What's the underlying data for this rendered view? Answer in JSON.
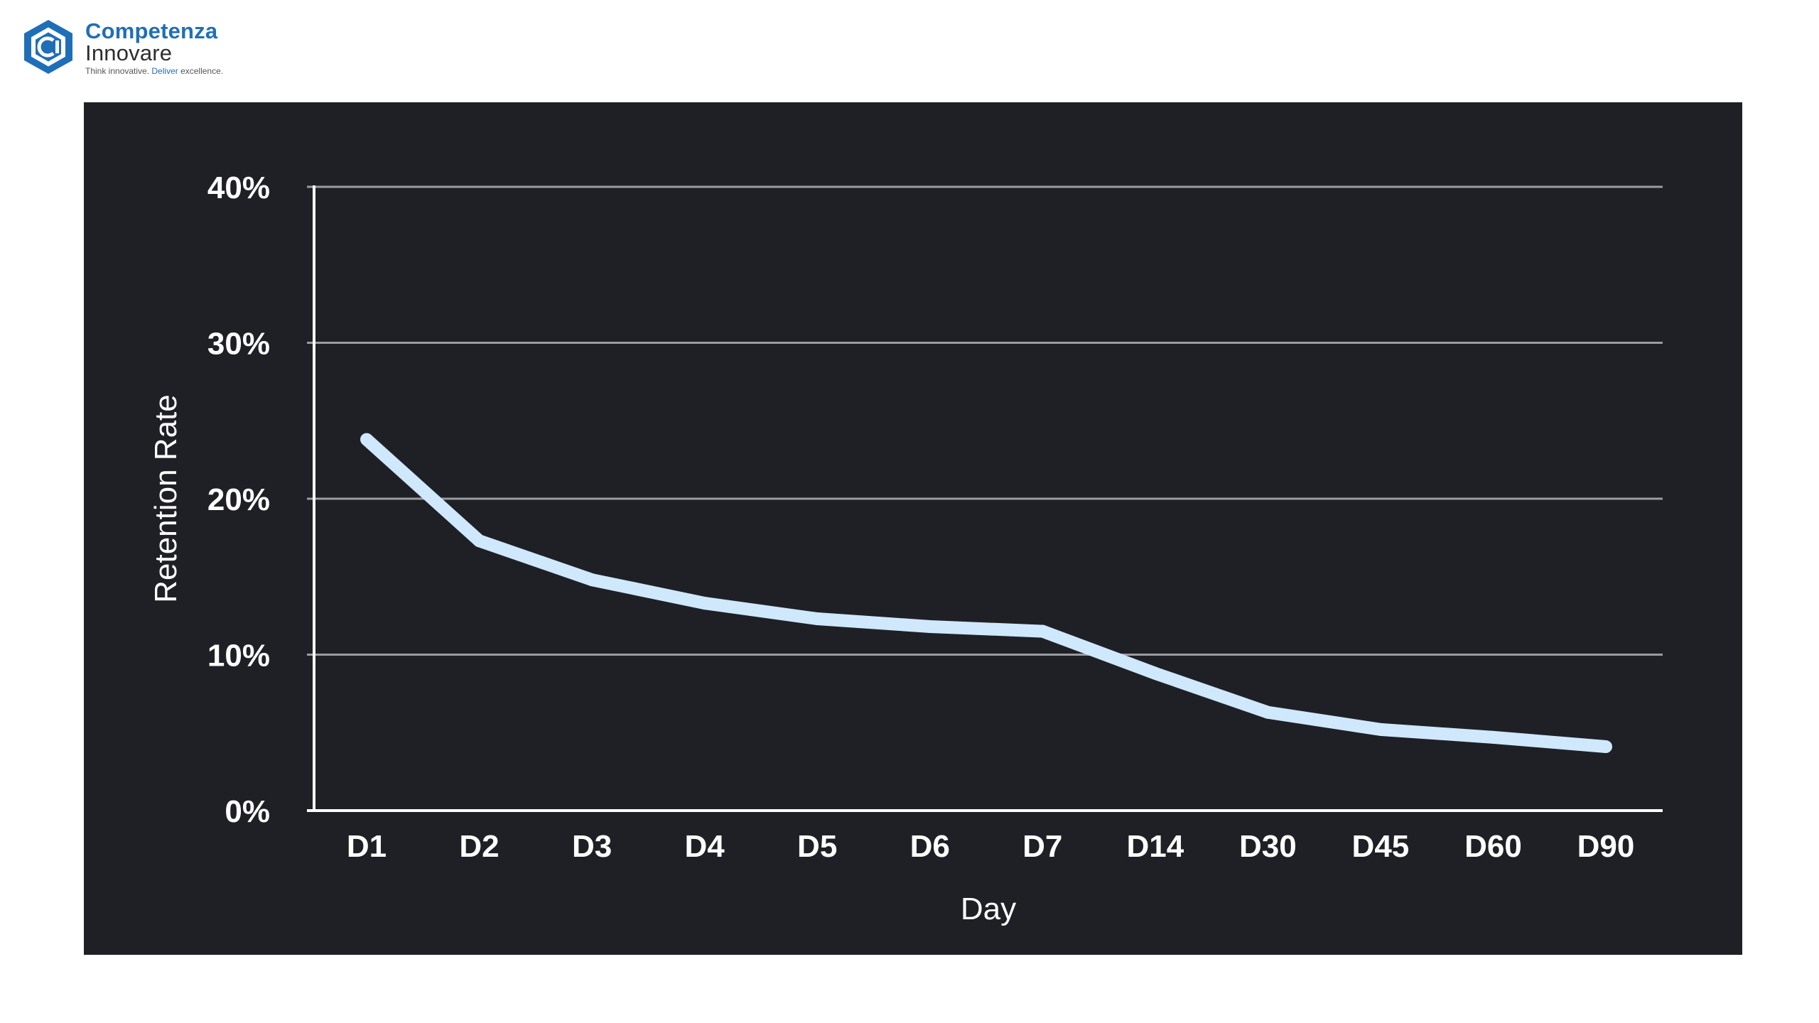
{
  "logo": {
    "line1": "Competenza",
    "line2": "Innovare",
    "tagline_part1": "Think innovative.",
    "tagline_part2": "Deliver",
    "tagline_part3": "excellence.",
    "brand_color": "#1f6fb8"
  },
  "chart_data": {
    "type": "line",
    "title": "",
    "xlabel": "Day",
    "ylabel": "Retention Rate",
    "categories": [
      "D1",
      "D2",
      "D3",
      "D4",
      "D5",
      "D6",
      "D7",
      "D14",
      "D30",
      "D45",
      "D60",
      "D90"
    ],
    "series": [
      {
        "values": [
          23.8,
          17.3,
          14.8,
          13.3,
          12.3,
          11.8,
          11.5,
          8.8,
          6.3,
          5.2,
          4.7,
          4.1
        ],
        "color": "#cfe8fc"
      }
    ],
    "ylim": [
      0,
      40
    ],
    "yticks": [
      0,
      10,
      20,
      30,
      40
    ],
    "ytick_labels": [
      "0%",
      "10%",
      "20%",
      "30%",
      "40%"
    ],
    "grid": true,
    "legend": "none",
    "background": "#1f2026",
    "grid_color": "#9a9ca3",
    "text_color": "#ffffff"
  }
}
